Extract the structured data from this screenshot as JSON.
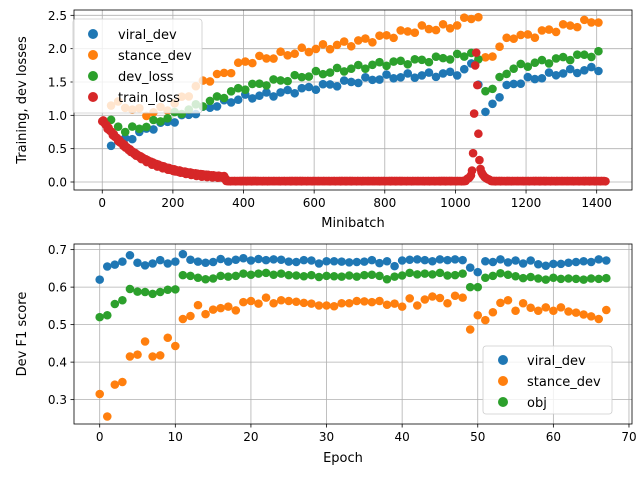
{
  "chart_data": [
    {
      "type": "scatter",
      "xlabel": "Minibatch",
      "ylabel": "Training, dev losses",
      "xlim": [
        -80,
        1500
      ],
      "ylim": [
        -0.12,
        2.58
      ],
      "xticks": [
        0,
        200,
        400,
        600,
        800,
        1000,
        1200,
        1400
      ],
      "yticks": [
        0.0,
        0.5,
        1.0,
        1.5,
        2.0,
        2.5
      ],
      "xtick_labels": [
        "0",
        "200",
        "400",
        "600",
        "800",
        "1000",
        "1200",
        "1400"
      ],
      "ytick_labels": [
        "0.0",
        "0.5",
        "1.0",
        "1.5",
        "2.0",
        "2.5"
      ],
      "grid": true,
      "legend_position": "upper-left",
      "series": [
        {
          "name": "viral_dev",
          "color": "#1f77b4",
          "x": [],
          "y": []
        },
        {
          "name": "stance_dev",
          "color": "#ff7f0e",
          "x": [],
          "y": []
        },
        {
          "name": "dev_loss",
          "color": "#2ca02c",
          "x": [],
          "y": []
        },
        {
          "name": "train_loss",
          "color": "#d62728",
          "x": [],
          "y": []
        }
      ]
    },
    {
      "type": "scatter",
      "xlabel": "Epoch",
      "ylabel": "Dev F1 score",
      "xlim": [
        -3.4,
        70.4
      ],
      "ylim": [
        0.235,
        0.715
      ],
      "xticks": [
        0,
        10,
        20,
        30,
        40,
        50,
        60,
        70
      ],
      "yticks": [
        0.3,
        0.4,
        0.5,
        0.6,
        0.7
      ],
      "xtick_labels": [
        "0",
        "10",
        "20",
        "30",
        "40",
        "50",
        "60",
        "70"
      ],
      "ytick_labels": [
        "0.3",
        "0.4",
        "0.5",
        "0.6",
        "0.7"
      ],
      "grid": true,
      "legend_position": "lower-right",
      "series": [
        {
          "name": "viral_dev",
          "color": "#1f77b4",
          "x": [
            0,
            1,
            2,
            3,
            4,
            5,
            6,
            7,
            8,
            9,
            10,
            11,
            12,
            13,
            14,
            15,
            16,
            17,
            18,
            19,
            20,
            21,
            22,
            23,
            24,
            25,
            26,
            27,
            28,
            29,
            30,
            31,
            32,
            33,
            34,
            35,
            36,
            37,
            38,
            39,
            40,
            41,
            42,
            43,
            44,
            45,
            46,
            47,
            48,
            49,
            50,
            51,
            52,
            53,
            54,
            55,
            56,
            57,
            58,
            59,
            60,
            61,
            62,
            63,
            64,
            65,
            66,
            67
          ],
          "y": [
            0.62,
            0.655,
            0.66,
            0.668,
            0.685,
            0.665,
            0.658,
            0.663,
            0.672,
            0.663,
            0.668,
            0.688,
            0.673,
            0.668,
            0.665,
            0.667,
            0.675,
            0.668,
            0.673,
            0.677,
            0.671,
            0.675,
            0.672,
            0.674,
            0.673,
            0.668,
            0.667,
            0.672,
            0.671,
            0.663,
            0.669,
            0.669,
            0.668,
            0.666,
            0.667,
            0.668,
            0.672,
            0.664,
            0.669,
            0.656,
            0.671,
            0.673,
            0.674,
            0.672,
            0.669,
            0.674,
            0.672,
            0.674,
            0.672,
            0.652,
            0.64,
            0.669,
            0.667,
            0.674,
            0.666,
            0.671,
            0.663,
            0.671,
            0.661,
            0.657,
            0.662,
            0.662,
            0.665,
            0.667,
            0.669,
            0.667,
            0.674,
            0.671
          ]
        },
        {
          "name": "stance_dev",
          "color": "#ff7f0e",
          "x": [
            0,
            1,
            2,
            3,
            4,
            5,
            6,
            7,
            8,
            9,
            10,
            11,
            12,
            13,
            14,
            15,
            16,
            17,
            18,
            19,
            20,
            21,
            22,
            23,
            24,
            25,
            26,
            27,
            28,
            29,
            30,
            31,
            32,
            33,
            34,
            35,
            36,
            37,
            38,
            39,
            40,
            41,
            42,
            43,
            44,
            45,
            46,
            47,
            48,
            49,
            50,
            51,
            52,
            53,
            54,
            55,
            56,
            57,
            58,
            59,
            60,
            61,
            62,
            63,
            64,
            65,
            66,
            67
          ],
          "y": [
            0.315,
            0.255,
            0.34,
            0.347,
            0.415,
            0.42,
            0.455,
            0.415,
            0.418,
            0.465,
            0.443,
            0.515,
            0.523,
            0.552,
            0.528,
            0.54,
            0.544,
            0.548,
            0.538,
            0.56,
            0.563,
            0.556,
            0.572,
            0.557,
            0.565,
            0.563,
            0.561,
            0.558,
            0.556,
            0.551,
            0.551,
            0.549,
            0.557,
            0.557,
            0.563,
            0.562,
            0.56,
            0.563,
            0.553,
            0.556,
            0.548,
            0.57,
            0.551,
            0.567,
            0.575,
            0.571,
            0.557,
            0.577,
            0.572,
            0.487,
            0.525,
            0.512,
            0.533,
            0.558,
            0.565,
            0.537,
            0.557,
            0.545,
            0.537,
            0.546,
            0.537,
            0.546,
            0.535,
            0.532,
            0.527,
            0.522,
            0.515,
            0.539
          ]
        },
        {
          "name": "obj",
          "color": "#2ca02c",
          "x": [
            0,
            1,
            2,
            3,
            4,
            5,
            6,
            7,
            8,
            9,
            10,
            11,
            12,
            13,
            14,
            15,
            16,
            17,
            18,
            19,
            20,
            21,
            22,
            23,
            24,
            25,
            26,
            27,
            28,
            29,
            30,
            31,
            32,
            33,
            34,
            35,
            36,
            37,
            38,
            39,
            40,
            41,
            42,
            43,
            44,
            45,
            46,
            47,
            48,
            49,
            50,
            51,
            52,
            53,
            54,
            55,
            56,
            57,
            58,
            59,
            60,
            61,
            62,
            63,
            64,
            65,
            66,
            67
          ],
          "y": [
            0.52,
            0.525,
            0.555,
            0.565,
            0.595,
            0.588,
            0.587,
            0.582,
            0.587,
            0.593,
            0.594,
            0.632,
            0.63,
            0.625,
            0.621,
            0.623,
            0.63,
            0.628,
            0.63,
            0.636,
            0.633,
            0.636,
            0.638,
            0.633,
            0.636,
            0.632,
            0.631,
            0.629,
            0.632,
            0.627,
            0.63,
            0.629,
            0.628,
            0.631,
            0.628,
            0.632,
            0.633,
            0.63,
            0.621,
            0.628,
            0.631,
            0.638,
            0.634,
            0.636,
            0.634,
            0.638,
            0.631,
            0.632,
            0.636,
            0.6,
            0.6,
            0.625,
            0.63,
            0.637,
            0.633,
            0.629,
            0.624,
            0.627,
            0.623,
            0.62,
            0.625,
            0.622,
            0.623,
            0.622,
            0.62,
            0.623,
            0.622,
            0.624
          ]
        }
      ]
    }
  ]
}
